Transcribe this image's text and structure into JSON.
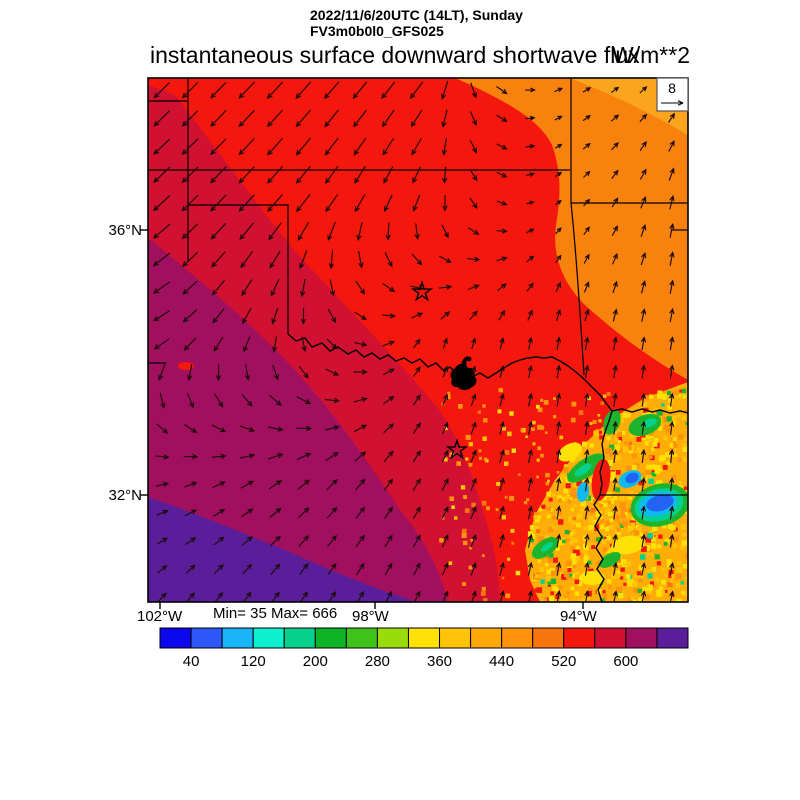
{
  "header": {
    "datetime": "2022/11/6/20UTC (14LT), Sunday",
    "model": "FV3m0b0l0_GFS025"
  },
  "title": {
    "text": "instantaneous surface downward shortwave flux",
    "units": "W/m**2"
  },
  "axes": {
    "lat_ticks": [
      "36°N",
      "32°N"
    ],
    "lon_ticks": [
      "102°W",
      "98°W",
      "94°W"
    ]
  },
  "stats": {
    "label": "Min= 35 Max= 666",
    "min": 35,
    "max": 666
  },
  "wind_reference": {
    "value": "8"
  },
  "colorbar": {
    "tick_labels": [
      "40",
      "120",
      "200",
      "280",
      "360",
      "440",
      "520",
      "600"
    ],
    "colors": [
      "#0B07EE",
      "#2E56F8",
      "#19B5F8",
      "#0FF0CF",
      "#06D18C",
      "#0EB426",
      "#3FC31C",
      "#9ADB0B",
      "#FFE205",
      "#FFC307",
      "#FFA808",
      "#FF930B",
      "#F8750E",
      "#F3170E",
      "#D01132",
      "#A0105F",
      "#5A1E9B"
    ]
  },
  "palette": {
    "red": "#F3170E",
    "crimson": "#D01132",
    "magenta": "#A0105F",
    "purple": "#5A1E9B",
    "orange": "#F8820E",
    "light_orange": "#FBA41E",
    "speckle_base": "#FFAE08",
    "green": "#1CB42C",
    "teal": "#06D18C",
    "cyan": "#0FBBEE",
    "blue": "#2263F2",
    "yellow": "#FFE205"
  },
  "chart_data": {
    "type": "heatmap",
    "title": "instantaneous surface downward shortwave flux",
    "units": "W/m**2",
    "valid_time": "2022/11/6/20UTC (14LT), Sunday",
    "model": "FV3m0b0l0_GFS025",
    "min_value": 35,
    "max_value": 666,
    "colorbar_boundaries": [
      40,
      80,
      120,
      160,
      200,
      240,
      280,
      320,
      360,
      400,
      440,
      480,
      520,
      560,
      600,
      640
    ],
    "colorbar_labeled_ticks": [
      40,
      120,
      200,
      280,
      360,
      440,
      520,
      600
    ],
    "colorbar_colors": [
      "#0B07EE",
      "#2E56F8",
      "#19B5F8",
      "#0FF0CF",
      "#06D18C",
      "#0EB426",
      "#3FC31C",
      "#9ADB0B",
      "#FFE205",
      "#FFC307",
      "#FFA808",
      "#FF930B",
      "#F8750E",
      "#F3170E",
      "#D01132",
      "#A0105F",
      "#5A1E9B"
    ],
    "x_axis": {
      "ticks": [
        "102°W",
        "98°W",
        "94°W"
      ]
    },
    "y_axis": {
      "ticks": [
        "36°N",
        "32°N"
      ]
    },
    "wind_reference_arrow": 8,
    "overlays": [
      "wind vector arrows",
      "state borders and rivers",
      "two star city markers",
      "lake (black fill)"
    ],
    "field_summary": [
      {
        "region": "southwest corner (purple)",
        "value_range_wm2": "640-666 (field maximum)"
      },
      {
        "region": "south-west band (magenta)",
        "value_range_wm2": "600-640"
      },
      {
        "region": "diagonal west band (dark red)",
        "value_range_wm2": "560-600"
      },
      {
        "region": "central / northern area (bright red)",
        "value_range_wm2": "520-560"
      },
      {
        "region": "northeast (orange)",
        "value_range_wm2": "440-520"
      },
      {
        "region": "southeast cloudy speckled area (yellow/green/blue)",
        "value_range_wm2": "35-440 (field minimum 35)"
      }
    ]
  }
}
